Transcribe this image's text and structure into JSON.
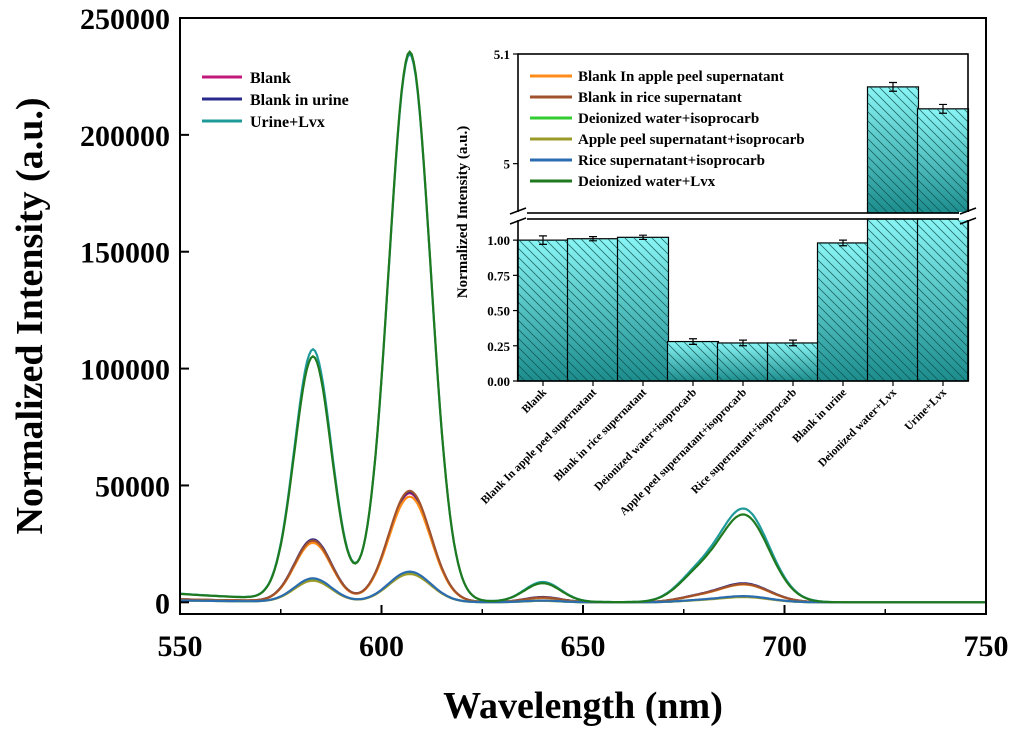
{
  "chart_data": [
    {
      "type": "line",
      "xlabel": "Wavelength (nm)",
      "ylabel": "Normalized Intensity (a.u.)",
      "xlim": [
        550,
        750
      ],
      "ylim": [
        -5000,
        250000
      ],
      "xticks": [
        "550",
        "600",
        "650",
        "700",
        "750"
      ],
      "yticks": [
        "0",
        "50000",
        "100000",
        "150000",
        "200000",
        "250000"
      ],
      "legend_main": [
        "Blank",
        "Blank in urine",
        "Urine+Lvx"
      ],
      "legend_inset": [
        "Blank In apple peel supernatant",
        "Blank in rice supernatant",
        "Deionized water+isoprocarb",
        "Apple peel supernatant+isoprocarb",
        "Rice supernatant+isoprocarb",
        "Deionized water+Lvx"
      ],
      "legend_placement": "top-left",
      "series": [
        {
          "name": "Blank",
          "color": "#c2187a",
          "peaks": {
            "583": 25500,
            "607": 46500,
            "640": 2000,
            "690": 7800
          }
        },
        {
          "name": "Blank in urine",
          "color": "#2a2a8c",
          "peaks": {
            "583": 26500,
            "607": 47000,
            "640": 2200,
            "690": 8000
          }
        },
        {
          "name": "Urine+Lvx",
          "color": "#1f9a9a",
          "peaks": {
            "583": 107000,
            "607": 234000,
            "640": 8500,
            "690": 39500
          }
        },
        {
          "name": "Blank In apple peel supernatant",
          "color": "#ff8c1a",
          "peaks": {
            "583": 25000,
            "607": 45000,
            "640": 1800,
            "690": 7500
          }
        },
        {
          "name": "Blank in rice supernatant",
          "color": "#a0522d",
          "peaks": {
            "583": 26000,
            "607": 47500,
            "640": 2000,
            "690": 7700
          }
        },
        {
          "name": "Deionized water+isoprocarb",
          "color": "#33cc33",
          "peaks": {
            "583": 9500,
            "607": 12500,
            "640": 600,
            "690": 2400
          }
        },
        {
          "name": "Apple peel supernatant+isoprocarb",
          "color": "#9a9a2a",
          "peaks": {
            "583": 9000,
            "607": 12000,
            "640": 600,
            "690": 2200
          }
        },
        {
          "name": "Rice supernatant+isoprocarb",
          "color": "#2b6cb0",
          "peaks": {
            "583": 10000,
            "607": 13000,
            "640": 700,
            "690": 2600
          }
        },
        {
          "name": "Deionized water+Lvx",
          "color": "#1f7a1f",
          "peaks": {
            "583": 104000,
            "607": 235000,
            "640": 8000,
            "690": 37000
          }
        }
      ]
    },
    {
      "type": "bar",
      "ylabel": "Normalized Intensity (a.u.)",
      "y_lower_ticks": [
        "0.00",
        "0.25",
        "0.50",
        "0.75",
        "1.00"
      ],
      "y_upper_ticks": [
        "5",
        "5.1"
      ],
      "y_lower_range": [
        0,
        1.15
      ],
      "y_upper_range": [
        4.955,
        5.1
      ],
      "axis_break": true,
      "color": "#2fb8b8",
      "categories": [
        "Blank",
        "Blank In apple peel supernatant",
        "Blank in rice supernatant",
        "Deionized water+isoprocarb",
        "Apple peel supernatant+isoprocarb",
        "Rice supernatant+isoprocarb",
        "Blank in urine",
        "Deionized water+Lvx",
        "Urine+Lvx"
      ],
      "values": [
        1.0,
        1.01,
        1.02,
        0.28,
        0.27,
        0.27,
        0.98,
        5.07,
        5.05
      ],
      "errors": [
        0.03,
        0.015,
        0.015,
        0.02,
        0.02,
        0.02,
        0.02,
        0.004,
        0.004
      ]
    }
  ]
}
